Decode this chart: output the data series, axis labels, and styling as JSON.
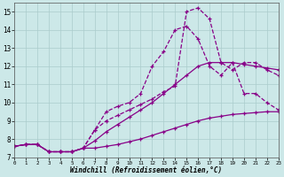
{
  "xlabel": "Windchill (Refroidissement éolien,°C)",
  "background_color": "#cce8e8",
  "grid_color": "#aacccc",
  "line_color": "#880088",
  "xlim": [
    0,
    23
  ],
  "ylim": [
    7,
    15.5
  ],
  "xticks": [
    0,
    1,
    2,
    3,
    4,
    5,
    6,
    7,
    8,
    9,
    10,
    11,
    12,
    13,
    14,
    15,
    16,
    17,
    18,
    19,
    20,
    21,
    22,
    23
  ],
  "yticks": [
    7,
    8,
    9,
    10,
    11,
    12,
    13,
    14,
    15
  ],
  "series": [
    {
      "style": "solid",
      "x": [
        0,
        1,
        2,
        3,
        4,
        5,
        6,
        7,
        8,
        9,
        10,
        11,
        12,
        13,
        14,
        15,
        16,
        17,
        18,
        19,
        20,
        21,
        22,
        23
      ],
      "y": [
        7.6,
        7.7,
        7.7,
        7.3,
        7.3,
        7.3,
        7.5,
        7.5,
        7.6,
        7.7,
        7.85,
        8.0,
        8.2,
        8.4,
        8.6,
        8.8,
        9.0,
        9.15,
        9.25,
        9.35,
        9.4,
        9.45,
        9.5,
        9.5
      ]
    },
    {
      "style": "solid",
      "x": [
        0,
        1,
        2,
        3,
        4,
        5,
        6,
        7,
        8,
        9,
        10,
        11,
        12,
        13,
        14,
        15,
        16,
        17,
        18,
        19,
        20,
        21,
        22,
        23
      ],
      "y": [
        7.6,
        7.7,
        7.7,
        7.3,
        7.3,
        7.3,
        7.5,
        7.9,
        8.4,
        8.8,
        9.2,
        9.6,
        10.0,
        10.5,
        11.0,
        11.5,
        12.0,
        12.2,
        12.2,
        12.2,
        12.1,
        12.0,
        11.9,
        11.8
      ]
    },
    {
      "style": "dashed",
      "x": [
        0,
        1,
        2,
        3,
        4,
        5,
        6,
        7,
        8,
        9,
        10,
        11,
        12,
        13,
        14,
        15,
        16,
        17,
        18,
        19,
        20,
        21,
        22,
        23
      ],
      "y": [
        7.6,
        7.7,
        7.7,
        7.3,
        7.3,
        7.3,
        7.5,
        8.5,
        9.5,
        9.8,
        10.0,
        10.5,
        12.0,
        12.8,
        14.0,
        14.2,
        13.5,
        12.0,
        11.5,
        12.2,
        10.5,
        10.5,
        10.0,
        9.6
      ]
    },
    {
      "style": "dashed",
      "x": [
        0,
        1,
        2,
        3,
        4,
        5,
        6,
        7,
        8,
        9,
        10,
        11,
        12,
        13,
        14,
        15,
        16,
        17,
        18,
        19,
        20,
        21,
        22,
        23
      ],
      "y": [
        7.6,
        7.7,
        7.7,
        7.3,
        7.3,
        7.3,
        7.5,
        8.5,
        9.0,
        9.3,
        9.6,
        9.9,
        10.2,
        10.6,
        10.9,
        15.0,
        15.2,
        14.6,
        12.2,
        11.8,
        12.2,
        12.2,
        11.8,
        11.5
      ]
    }
  ]
}
